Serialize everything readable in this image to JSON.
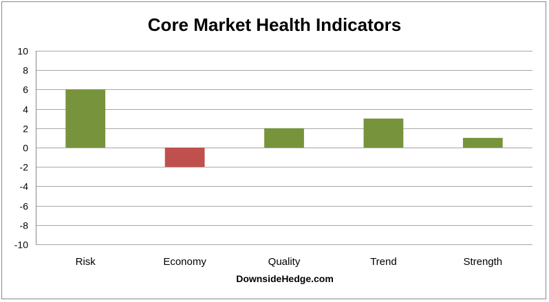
{
  "chart_data": {
    "type": "bar",
    "title": "Core Market Health Indicators",
    "xlabel": "DownsideHedge.com",
    "ylabel": "",
    "categories": [
      "Risk",
      "Economy",
      "Quality",
      "Trend",
      "Strength"
    ],
    "values": [
      6,
      -2,
      2,
      3,
      1
    ],
    "ylim": [
      -10,
      10
    ],
    "yticks": [
      10,
      8,
      6,
      4,
      2,
      0,
      -2,
      -4,
      -6,
      -8,
      -10
    ],
    "grid": true,
    "legend": "none",
    "colors": {
      "positive": "#77933C",
      "negative": "#C0504D",
      "gridline": "#A6A6A6",
      "axis": "#868686"
    }
  }
}
